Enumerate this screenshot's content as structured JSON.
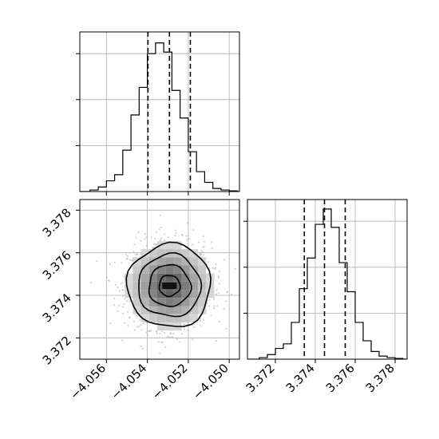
{
  "chart_data": [
    {
      "type": "histogram",
      "panel": "top-left",
      "x_param_index": 0,
      "xlim": [
        -4.0573,
        -4.0495
      ],
      "bin_edges_start": -4.0568,
      "bin_width": 0.0004,
      "counts": [
        0.01,
        0.03,
        0.07,
        0.11,
        0.27,
        0.5,
        0.68,
        0.9,
        0.97,
        0.91,
        0.66,
        0.48,
        0.26,
        0.13,
        0.06,
        0.02,
        0.01,
        0.005
      ],
      "quantile_lines": [
        -4.05397,
        -4.05292,
        -4.0519
      ],
      "grid": true,
      "show_x_tick_labels": false
    },
    {
      "type": "scatter-density-contour",
      "panel": "bottom-left",
      "xlim": [
        -4.0573,
        -4.0495
      ],
      "ylim": [
        3.371,
        3.3785
      ],
      "x_ticks": [
        -4.056,
        -4.054,
        -4.052,
        -4.05
      ],
      "x_tick_labels": [
        "−4.056",
        "−4.054",
        "−4.052",
        "−4.050"
      ],
      "y_ticks": [
        3.372,
        3.374,
        3.376,
        3.378
      ],
      "y_tick_labels": [
        "3.372",
        "3.374",
        "3.376",
        "3.378"
      ],
      "center": [
        -4.05292,
        3.37445
      ],
      "sigma": [
        0.00102,
        0.00101
      ],
      "contour_levels_sigma": [
        0.5,
        1.0,
        1.5,
        2.0
      ],
      "grid": true
    },
    {
      "type": "histogram",
      "panel": "bottom-right",
      "xlim": [
        3.3706,
        3.3786
      ],
      "bin_edges_start": 3.3712,
      "bin_width": 0.0004,
      "counts": [
        0.01,
        0.03,
        0.07,
        0.1,
        0.24,
        0.46,
        0.66,
        0.88,
        0.98,
        0.86,
        0.63,
        0.44,
        0.24,
        0.12,
        0.05,
        0.02,
        0.01,
        0.005
      ],
      "quantile_lines": [
        3.37345,
        3.37446,
        3.3755
      ],
      "x_ticks": [
        3.372,
        3.374,
        3.376,
        3.378
      ],
      "x_tick_labels": [
        "3.372",
        "3.374",
        "3.376",
        "3.378"
      ],
      "grid": true
    }
  ]
}
